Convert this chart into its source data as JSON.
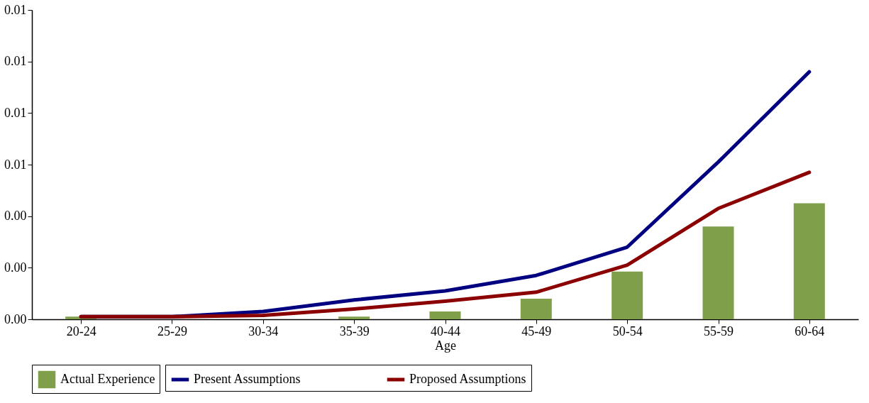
{
  "chart_data": {
    "type": "bar",
    "xlabel": "Age",
    "categories": [
      "20-24",
      "25-29",
      "30-34",
      "35-39",
      "40-44",
      "45-49",
      "50-54",
      "55-59",
      "60-64"
    ],
    "series": [
      {
        "name": "Actual Experience",
        "color": "#7f9f4a",
        "values": [
          0.0001,
          0,
          0,
          0.0001,
          0.0003,
          0.0008,
          0.00185,
          0.0036,
          0.0045
        ]
      },
      {
        "name": "Present Assumptions",
        "type": "line",
        "color": "#000080",
        "values": [
          0.0001,
          0.0001,
          0.0003,
          0.00075,
          0.0011,
          0.0017,
          0.0028,
          0.0061,
          0.0096
        ]
      },
      {
        "name": "Proposed Assumptions",
        "type": "line",
        "color": "#8b0000",
        "values": [
          0.0001,
          0.0001,
          0.00015,
          0.0004,
          0.0007,
          0.00105,
          0.0021,
          0.0043,
          0.0057
        ]
      }
    ],
    "ylim": [
      0,
      0.012
    ],
    "yticks": [
      {
        "value": 0,
        "label": "0.00"
      },
      {
        "value": 0.002,
        "label": "0.00"
      },
      {
        "value": 0.004,
        "label": "0.00"
      },
      {
        "value": 0.006,
        "label": "0.01"
      },
      {
        "value": 0.008,
        "label": "0.01"
      },
      {
        "value": 0.01,
        "label": "0.01"
      },
      {
        "value": 0.012,
        "label": "0.01"
      }
    ],
    "grid": false,
    "legend": "bottom",
    "marker": "none",
    "line_style": "solid"
  }
}
